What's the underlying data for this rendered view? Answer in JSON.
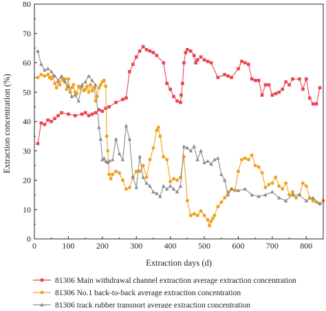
{
  "chart_data": {
    "type": "line",
    "xlabel": "Extraction days (d)",
    "ylabel": "Extraction concentration (%)",
    "xlim": [
      0,
      850
    ],
    "ylim": [
      0,
      80
    ],
    "x_ticks": [
      0,
      100,
      200,
      300,
      400,
      500,
      600,
      700,
      800
    ],
    "y_ticks": [
      0,
      10,
      20,
      30,
      40,
      50,
      60,
      70,
      80
    ],
    "grid": false,
    "legend_position": "bottom",
    "series": [
      {
        "name": "81306 Main withdrawal channel extraction average extraction concentration",
        "color": "#e8424f",
        "marker": "square",
        "x": [
          10,
          20,
          30,
          40,
          50,
          60,
          70,
          80,
          100,
          120,
          140,
          150,
          160,
          170,
          180,
          190,
          200,
          210,
          220,
          240,
          260,
          270,
          280,
          290,
          300,
          310,
          320,
          330,
          340,
          350,
          360,
          380,
          390,
          400,
          410,
          420,
          430,
          432,
          436,
          440,
          445,
          450,
          460,
          470,
          475,
          480,
          490,
          500,
          510,
          520,
          540,
          560,
          570,
          580,
          600,
          610,
          620,
          630,
          640,
          650,
          660,
          670,
          680,
          690,
          700,
          710,
          720,
          730,
          740,
          750,
          760,
          780,
          790,
          800,
          810,
          820,
          830,
          840
        ],
        "y": [
          32.5,
          39.5,
          39,
          40.5,
          40,
          41,
          42,
          43,
          42.5,
          42,
          42.5,
          43,
          42,
          42.5,
          43,
          44,
          43.5,
          44.5,
          45,
          46.5,
          47.5,
          48,
          57,
          59.5,
          62,
          64,
          65.5,
          64.5,
          64,
          63.5,
          62.5,
          60,
          53,
          51,
          48.5,
          47,
          46.5,
          49,
          53,
          60,
          63.5,
          64.5,
          64,
          62.5,
          60,
          61,
          62,
          61,
          60.5,
          60,
          55,
          56,
          55.5,
          55,
          58,
          60.5,
          60,
          59.5,
          54.5,
          54,
          54,
          49,
          52.5,
          52.5,
          49,
          49.5,
          50,
          51,
          53.5,
          52.5,
          54.5,
          54.5,
          51,
          54.5,
          48,
          46,
          46,
          51.5
        ]
      },
      {
        "name": "81306 No.1 back-to-back average extraction concentration",
        "color": "#f0a020",
        "marker": "circle",
        "x": [
          10,
          20,
          30,
          40,
          45,
          50,
          55,
          60,
          65,
          70,
          75,
          80,
          85,
          90,
          95,
          100,
          105,
          110,
          115,
          120,
          125,
          130,
          135,
          140,
          145,
          150,
          155,
          160,
          165,
          170,
          175,
          180,
          185,
          190,
          195,
          200,
          205,
          210,
          213,
          216,
          220,
          225,
          230,
          240,
          250,
          260,
          270,
          280,
          290,
          300,
          310,
          320,
          330,
          340,
          350,
          360,
          365,
          370,
          380,
          390,
          400,
          410,
          420,
          430,
          440,
          450,
          460,
          470,
          480,
          490,
          500,
          510,
          515,
          520,
          525,
          530,
          540,
          550,
          560,
          570,
          580,
          590,
          600,
          610,
          620,
          630,
          640,
          650,
          660,
          670,
          680,
          690,
          700,
          710,
          720,
          730,
          740,
          750,
          760,
          770,
          780,
          790,
          800,
          810,
          820,
          830,
          840,
          850
        ],
        "y": [
          55,
          56,
          55.5,
          56,
          55,
          54.5,
          55.5,
          53,
          51.5,
          53.5,
          52.5,
          55,
          54,
          54.5,
          51,
          54.5,
          50,
          51.5,
          52.5,
          50,
          49.5,
          52,
          51.5,
          52,
          50.5,
          51,
          52,
          50,
          52.5,
          50.5,
          51.5,
          47,
          48.5,
          51.5,
          52.5,
          53.5,
          54,
          52,
          35,
          30,
          22,
          20.5,
          22,
          23,
          22.5,
          20,
          17,
          17.5,
          21,
          23,
          23,
          25,
          21,
          27,
          31,
          37,
          38,
          35,
          28,
          27,
          19.5,
          20.5,
          20,
          21,
          28,
          13,
          8,
          8.5,
          8,
          9.5,
          8,
          6.5,
          4.5,
          6,
          7,
          8,
          11,
          12.5,
          14,
          16,
          17,
          16.5,
          23,
          27,
          27.5,
          27,
          28.5,
          25,
          24.5,
          22.5,
          17.5,
          18.5,
          19,
          21,
          18,
          17,
          19,
          15,
          16,
          14,
          15,
          19,
          18,
          14,
          13,
          12.5,
          12,
          13
        ]
      },
      {
        "name": "81306 track rubber transport average extraction concentration",
        "color": "#8a8a8a",
        "marker": "triangle",
        "x": [
          10,
          20,
          30,
          40,
          50,
          60,
          70,
          80,
          90,
          100,
          110,
          120,
          130,
          140,
          150,
          160,
          170,
          180,
          190,
          195,
          200,
          205,
          210,
          215,
          220,
          230,
          240,
          250,
          260,
          270,
          280,
          290,
          300,
          310,
          320,
          330,
          340,
          350,
          360,
          370,
          380,
          390,
          400,
          410,
          420,
          430,
          440,
          450,
          460,
          470,
          480,
          490,
          500,
          510,
          520,
          530,
          540,
          550,
          560,
          570,
          580,
          600,
          620,
          640,
          660,
          680,
          700,
          720,
          740,
          760,
          780,
          800,
          820,
          840
        ],
        "y": [
          64,
          59.5,
          57.5,
          58,
          57,
          55.5,
          54,
          55.5,
          53.5,
          52,
          48.5,
          49,
          47,
          52.5,
          53.5,
          55.5,
          54,
          52.5,
          38,
          34,
          27,
          27.5,
          26.5,
          26,
          26.5,
          27,
          34,
          29,
          27,
          38.5,
          34,
          21,
          17.5,
          28,
          21,
          19,
          18,
          16,
          15.5,
          14.5,
          18,
          17,
          18,
          17,
          16,
          18,
          31.5,
          31,
          30,
          31.5,
          27,
          30,
          26,
          26.5,
          25.5,
          27,
          27.5,
          22,
          20,
          15,
          17,
          16.5,
          17,
          15,
          14.5,
          15,
          16,
          14,
          13,
          15,
          15,
          13,
          14,
          12
        ]
      }
    ]
  }
}
